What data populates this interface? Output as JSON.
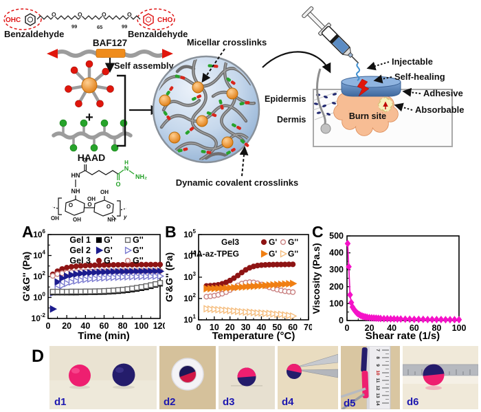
{
  "scheme": {
    "benzaldehyde": "Benzaldehyde",
    "ohc": "OHC",
    "cho": "CHO",
    "n1": "99",
    "n2": "65",
    "n3": "99",
    "baf127": "BAF127",
    "self_assembly": "Self assembly",
    "plus": "+",
    "haad": "HAAD",
    "micellar": "Micellar crosslinks",
    "dynamic": "Dynamic covalent crosslinks",
    "epidermis": "Epidermis",
    "dermis": "Dermis",
    "burn_site": "Burn site",
    "injectable": "Injectable",
    "self_healing": "Self-healing",
    "adhesive": "Adhesive",
    "absorbable": "Absorbable",
    "chem": {
      "hn": "HN",
      "nh": "NH",
      "o": "O",
      "oh": "OH",
      "nh2": "NH₂",
      "n": "N",
      "h": "H",
      "y": "y"
    }
  },
  "colors": {
    "pink_gel": "#ee1f70",
    "navy_gel": "#241c6b",
    "dark_red": "#8e1414",
    "navy_series": "#1c1c8e",
    "orange_series": "#f07f13",
    "magenta": "#f512c8",
    "micelle_orange": "#f08c1e",
    "red": "#e0160c",
    "green": "#27a32b",
    "chain_gray": "#9c9c9c",
    "circle_blue": "#a9c4e2",
    "skin_blue": "#4f81bd",
    "burn": "#f7bd94"
  },
  "chart_data": [
    {
      "panel": "A",
      "type": "scatter",
      "xlabel": "Time (min)",
      "ylabel": "G'&G'' (Pa)",
      "xlim": [
        0,
        120
      ],
      "xticks": [
        0,
        20,
        40,
        60,
        80,
        100,
        120
      ],
      "yscale": "log",
      "ylog": [
        -2,
        6
      ],
      "ylabeled": [
        -2,
        0,
        2,
        4,
        6
      ],
      "x": [
        5,
        10,
        15,
        20,
        25,
        30,
        35,
        40,
        45,
        50,
        55,
        60,
        65,
        70,
        75,
        80,
        85,
        90,
        95,
        100,
        105,
        110,
        115,
        120
      ],
      "series": [
        {
          "name": "Gel 3 G'",
          "marker": "circle",
          "filled": true,
          "color": "#8e1414",
          "open_color": "#c98080",
          "values": [
            160,
            320,
            520,
            700,
            840,
            950,
            1030,
            1090,
            1140,
            1180,
            1210,
            1240,
            1260,
            1280,
            1295,
            1310,
            1320,
            1330,
            1340,
            1350,
            1360,
            1365,
            1370,
            1375
          ]
        },
        {
          "name": "Gel 3 G''",
          "marker": "circle",
          "filled": false,
          "color": "#8e1414",
          "open_color": "#c98080",
          "values": [
            115,
            170,
            205,
            232,
            252,
            268,
            280,
            290,
            297,
            303,
            308,
            312,
            316,
            319,
            322,
            325,
            327,
            329,
            331,
            333,
            334,
            335,
            336,
            337
          ]
        },
        {
          "name": "Gel 2 G'",
          "marker": "tri",
          "filled": true,
          "color": "#1c1c8e",
          "open_color": "#7a7ad0",
          "values": [
            0.08,
            30,
            70,
            108,
            140,
            168,
            192,
            212,
            228,
            242,
            254,
            264,
            273,
            280,
            287,
            292,
            297,
            301,
            305,
            308,
            311,
            314,
            316,
            318
          ]
        },
        {
          "name": "Gel 2 G''",
          "marker": "tri",
          "filled": false,
          "color": "#1c1c8e",
          "open_color": "#7a7ad0",
          "values": [
            2.6,
            7,
            14,
            22,
            30,
            38,
            45,
            52,
            58,
            64,
            69,
            74,
            78,
            82,
            86,
            89,
            92,
            95,
            98,
            100,
            102,
            104,
            106,
            108
          ]
        },
        {
          "name": "Gel 1 G'",
          "marker": "square",
          "filled": true,
          "color": "#000000",
          "open_color": "#666666",
          "values": [
            3,
            3,
            3,
            3,
            3,
            3,
            3.1,
            3.1,
            3.2,
            3.2,
            3.3,
            3.4,
            3.6,
            3.8,
            4.1,
            4.5,
            5,
            5.7,
            6.6,
            7.8,
            9.5,
            12,
            16,
            21
          ]
        },
        {
          "name": "Gel 1 G''",
          "marker": "square",
          "filled": false,
          "color": "#000000",
          "open_color": "#666666",
          "values": [
            3.6,
            3.6,
            3.6,
            3.6,
            3.7,
            3.7,
            3.7,
            3.8,
            3.8,
            3.9,
            4,
            4.2,
            4.4,
            4.7,
            5.1,
            5.6,
            6.3,
            7.2,
            8.4,
            10,
            12,
            15,
            19,
            25
          ]
        }
      ],
      "legend": {
        "rows": [
          {
            "label": "Gel 1",
            "marker": "square",
            "color": "#000000",
            "open_color": "#666666",
            "g1": "G'",
            "g2": "G''"
          },
          {
            "label": "Gel 2",
            "marker": "tri",
            "color": "#1c1c8e",
            "open_color": "#7a7ad0",
            "g1": "G'",
            "g2": "G''"
          },
          {
            "label": "Gel 3",
            "marker": "circle",
            "color": "#8e1414",
            "open_color": "#c98080",
            "g1": "G'",
            "g2": "G''"
          }
        ]
      }
    },
    {
      "panel": "B",
      "type": "scatter",
      "xlabel": "Temperature (°C)",
      "ylabel": "G'&G'' (Pa)",
      "xlim": [
        0,
        70
      ],
      "xticks": [
        0,
        10,
        20,
        30,
        40,
        50,
        60,
        70
      ],
      "yscale": "log",
      "ylog": [
        1,
        5
      ],
      "ylabeled": [
        1,
        2,
        3,
        4,
        5
      ],
      "x": [
        5,
        7.5,
        10,
        12.5,
        15,
        17.5,
        20,
        22.5,
        25,
        27.5,
        30,
        32.5,
        35,
        37.5,
        40,
        42.5,
        45,
        47.5,
        50,
        52.5,
        55,
        57.5,
        60
      ],
      "series": [
        {
          "name": "Gel3 G'",
          "marker": "circle",
          "filled": true,
          "color": "#8e1414",
          "open_color": "#c98080",
          "values": [
            390,
            400,
            415,
            440,
            490,
            570,
            700,
            900,
            1200,
            1650,
            2200,
            2750,
            3200,
            3500,
            3680,
            3780,
            3840,
            3880,
            3910,
            3940,
            3960,
            3980,
            4000
          ]
        },
        {
          "name": "Gel3 G''",
          "marker": "circle",
          "filled": false,
          "color": "#8e1414",
          "open_color": "#c98080",
          "values": [
            122,
            128,
            136,
            148,
            168,
            200,
            250,
            320,
            410,
            500,
            560,
            585,
            570,
            520,
            450,
            390,
            335,
            295,
            262,
            238,
            220,
            208,
            200
          ]
        },
        {
          "name": "HA-az-TPEG G'",
          "marker": "tri",
          "filled": true,
          "color": "#f07f13",
          "open_color": "#f5bd7e",
          "values": [
            290,
            293,
            296,
            300,
            305,
            311,
            318,
            326,
            335,
            344,
            354,
            365,
            376,
            388,
            400,
            412,
            425,
            438,
            451,
            464,
            477,
            490,
            503
          ]
        },
        {
          "name": "HA-az-TPEG G''",
          "marker": "tri",
          "filled": false,
          "color": "#f07f13",
          "open_color": "#f5bd7e",
          "values": [
            33,
            32,
            31,
            30,
            29,
            28,
            27,
            26,
            25,
            24,
            23,
            23,
            22,
            21,
            21,
            20,
            20,
            19,
            18,
            18,
            17,
            16,
            15
          ]
        }
      ],
      "legend": {
        "rows": [
          {
            "label": "Gel3",
            "marker": "circle",
            "color": "#8e1414",
            "open_color": "#c98080",
            "g1": "G'",
            "g2": "G''"
          },
          {
            "label": "HA-az-TPEG",
            "marker": "tri",
            "color": "#f07f13",
            "open_color": "#f5bd7e",
            "g1": "G'",
            "g2": "G''"
          }
        ]
      }
    },
    {
      "panel": "C",
      "type": "scatter",
      "xlabel": "Shear rate (1/s)",
      "ylabel": "Viscosity (Pa.s)",
      "xlim": [
        0,
        100
      ],
      "xticks": [
        0,
        20,
        40,
        60,
        80,
        100
      ],
      "yscale": "linear",
      "ylim": [
        0,
        500
      ],
      "yticks": [
        0,
        100,
        200,
        300,
        400,
        500
      ],
      "yminor": [
        50,
        150,
        250,
        350,
        450
      ],
      "x": [
        0.6,
        1.6,
        2.7,
        3.8,
        4.9,
        6,
        7.2,
        8.4,
        9.6,
        10.9,
        12.2,
        13.6,
        15,
        16.5,
        18,
        20,
        22,
        24,
        26,
        28,
        30,
        33,
        36,
        39,
        42,
        45,
        48,
        52,
        56,
        60,
        64,
        68,
        72,
        76,
        80,
        84,
        88,
        92,
        96,
        100
      ],
      "series": [
        {
          "name": "Viscosity",
          "marker": "diamond",
          "filled": true,
          "color": "#f512c8",
          "open_color": "#f512c8",
          "line": true,
          "values": [
            455,
            318,
            152,
            106,
            80,
            68,
            57,
            48,
            41,
            35,
            30,
            26,
            23,
            21,
            19,
            17,
            16,
            15,
            14,
            13,
            12,
            11,
            11,
            10,
            10,
            9,
            9,
            8,
            8,
            7,
            7,
            7,
            6,
            6,
            6,
            6,
            5,
            5,
            5,
            5
          ]
        }
      ]
    }
  ],
  "panel_d": {
    "label": "D",
    "photos": [
      {
        "id": "d1"
      },
      {
        "id": "d2"
      },
      {
        "id": "d3"
      },
      {
        "id": "d4"
      },
      {
        "id": "d5"
      },
      {
        "id": "d6"
      }
    ],
    "ruler_numbers": [
      "7",
      "8",
      "9",
      "10",
      "11",
      "12",
      "13",
      "14"
    ]
  }
}
